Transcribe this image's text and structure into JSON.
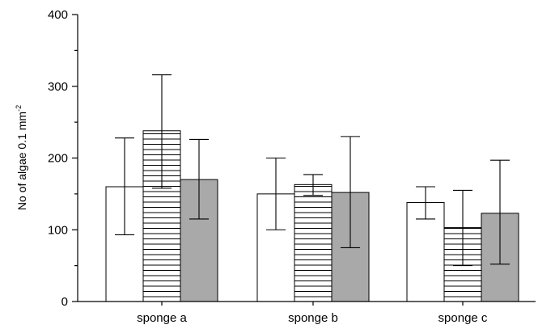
{
  "chart_data": {
    "type": "bar",
    "ylabel": "No of algae 0.1 mm",
    "ylabel_sup": "-2",
    "ylim": [
      0,
      400
    ],
    "yticks": [
      0,
      100,
      200,
      300,
      400
    ],
    "categories": [
      "sponge a",
      "sponge b",
      "sponge c"
    ],
    "series": [
      {
        "fill": "#ffffff",
        "pattern": "none",
        "values": [
          160,
          150,
          138
        ],
        "err_low": [
          93,
          100,
          115
        ],
        "err_high": [
          228,
          200,
          160
        ]
      },
      {
        "fill": "#ffffff",
        "pattern": "horizontal-lines",
        "values": [
          238,
          163,
          103
        ],
        "err_low": [
          158,
          148,
          50
        ],
        "err_high": [
          316,
          177,
          155
        ]
      },
      {
        "fill": "#a9a9a9",
        "pattern": "none",
        "values": [
          170,
          152,
          123
        ],
        "err_low": [
          115,
          75,
          52
        ],
        "err_high": [
          226,
          230,
          197
        ]
      }
    ],
    "grid": false,
    "legend": "none"
  }
}
